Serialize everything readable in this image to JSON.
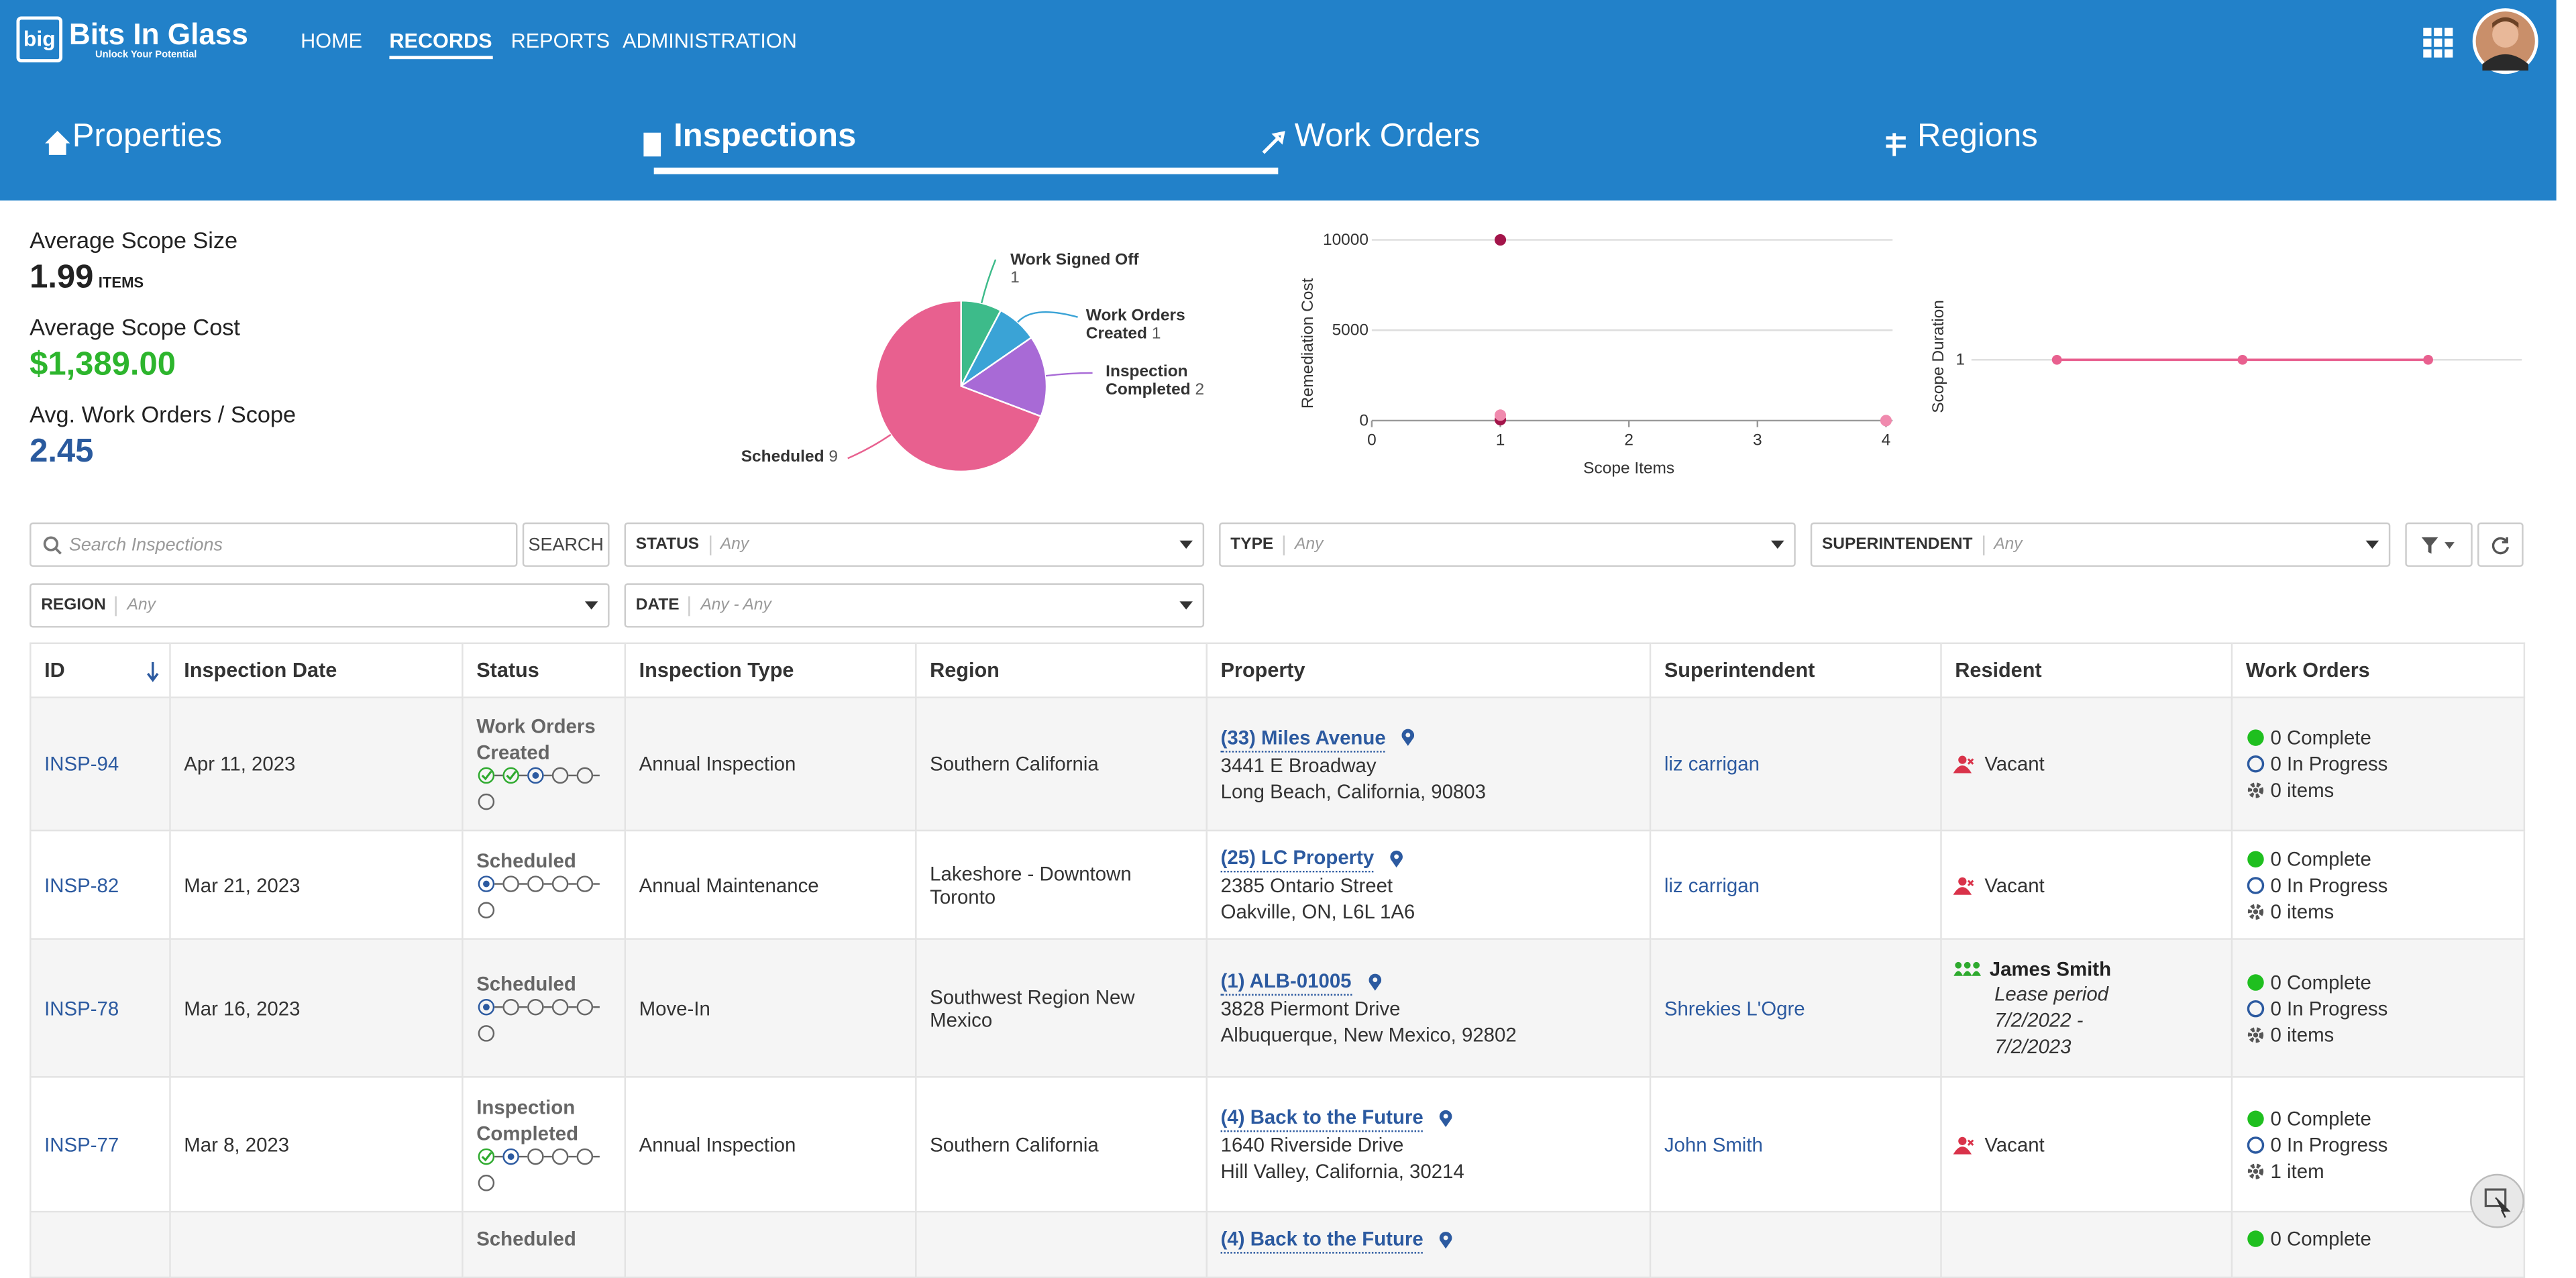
{
  "header": {
    "logo_mark": "big",
    "logo_title": "Bits In Glass",
    "logo_tagline": "Unlock Your Potential",
    "nav": [
      "HOME",
      "RECORDS",
      "REPORTS",
      "ADMINISTRATION"
    ],
    "active_nav": 1
  },
  "tabs": {
    "items": [
      "Properties",
      "Inspections",
      "Work Orders",
      "Regions"
    ],
    "active": 1
  },
  "stats": [
    {
      "label": "Average Scope Size",
      "value": "1.99",
      "unit": "ITEMS",
      "color": "#222222"
    },
    {
      "label": "Average Scope Cost",
      "value": "$1,389.00",
      "color": "#2db52d"
    },
    {
      "label": "Avg. Work Orders / Scope",
      "value": "2.45",
      "color": "#2a5a9e"
    }
  ],
  "chart_data": [
    {
      "type": "pie",
      "categories": [
        "Work Signed Off",
        "Work Orders Created",
        "Inspection Completed",
        "Scheduled"
      ],
      "values": [
        1,
        1,
        2,
        9
      ],
      "colors": [
        "#3dbb8a",
        "#3aa3d6",
        "#a86ad6",
        "#e8608f"
      ]
    },
    {
      "type": "scatter",
      "x_label": "Scope Items",
      "y_label": "Remediation Cost",
      "xlim": [
        0,
        4
      ],
      "ylim": [
        0,
        10000
      ],
      "xticks": [
        0,
        1,
        2,
        3,
        4
      ],
      "yticks": [
        0,
        5000,
        10000
      ],
      "grid": true,
      "series": [
        {
          "color": "#a3154a",
          "x": [
            1,
            1
          ],
          "values": [
            10000,
            50
          ]
        },
        {
          "color": "#f08aae",
          "x": [
            1,
            4
          ],
          "values": [
            300,
            0
          ]
        }
      ]
    },
    {
      "type": "line",
      "y_label": "Scope Duration",
      "categories": [
        null,
        null,
        null
      ],
      "values": [
        1,
        1,
        1
      ],
      "ylim": [
        0,
        2
      ],
      "yticks": [
        1
      ],
      "grid": true,
      "color": "#e8608f"
    }
  ],
  "filters": {
    "search_placeholder": "Search Inspections",
    "search_button": "SEARCH",
    "dropdowns": [
      {
        "label": "STATUS",
        "value": "Any"
      },
      {
        "label": "TYPE",
        "value": "Any"
      },
      {
        "label": "SUPERINTENDENT",
        "value": "Any"
      },
      {
        "label": "REGION",
        "value": "Any"
      },
      {
        "label": "DATE",
        "value": "Any - Any"
      }
    ]
  },
  "table": {
    "columns": [
      "ID",
      "Inspection Date",
      "Status",
      "Inspection Type",
      "Region",
      "Property",
      "Superintendent",
      "Resident",
      "Work Orders"
    ],
    "rows": [
      {
        "id": "INSP-94",
        "date": "Apr 11, 2023",
        "status": "Work Orders Created",
        "progress": [
          "done",
          "done",
          "current",
          "todo",
          "todo",
          "todo"
        ],
        "type": "Annual Inspection",
        "region": "Southern California",
        "property": {
          "name": "(33) Miles Avenue",
          "street": "3441 E Broadway",
          "city": "Long Beach, California, 90803"
        },
        "superintendent": "liz carrigan",
        "resident": {
          "name": "Vacant"
        },
        "work_orders": [
          "0 Complete",
          "0 In Progress",
          "0 items"
        ]
      },
      {
        "id": "INSP-82",
        "date": "Mar 21, 2023",
        "status": "Scheduled",
        "progress": [
          "current",
          "todo",
          "todo",
          "todo",
          "todo",
          "todo"
        ],
        "type": "Annual Maintenance",
        "region": "Lakeshore - Downtown Toronto",
        "property": {
          "name": "(25) LC Property",
          "street": "2385 Ontario Street",
          "city": "Oakville, ON, L6L 1A6"
        },
        "superintendent": "liz carrigan",
        "resident": {
          "name": "Vacant"
        },
        "work_orders": [
          "0 Complete",
          "0 In Progress",
          "0 items"
        ]
      },
      {
        "id": "INSP-78",
        "date": "Mar 16, 2023",
        "status": "Scheduled",
        "progress": [
          "current",
          "todo",
          "todo",
          "todo",
          "todo",
          "todo"
        ],
        "type": "Move-In",
        "region": "Southwest Region New Mexico",
        "property": {
          "name": "(1) ALB-01005",
          "street": "3828 Piermont Drive",
          "city": "Albuquerque, New Mexico, 92802"
        },
        "superintendent": "Shrekies L'Ogre",
        "resident": {
          "name": "James Smith",
          "lease": "Lease period 7/2/2022 - 7/2/2023"
        },
        "work_orders": [
          "0 Complete",
          "0 In Progress",
          "0 items"
        ]
      },
      {
        "id": "INSP-77",
        "date": "Mar 8, 2023",
        "status": "Inspection Completed",
        "progress": [
          "done",
          "current",
          "todo",
          "todo",
          "todo",
          "todo"
        ],
        "type": "Annual Inspection",
        "region": "Southern California",
        "property": {
          "name": "(4) Back to the Future",
          "street": "1640 Riverside Drive",
          "city": "Hill Valley, California, 30214"
        },
        "superintendent": "John Smith",
        "resident": {
          "name": "Vacant"
        },
        "work_orders": [
          "0 Complete",
          "0 In Progress",
          "1 item"
        ]
      },
      {
        "status": "Scheduled",
        "property": {
          "name": "(4) Back to the Future"
        },
        "work_orders": [
          "0 Complete"
        ]
      }
    ]
  }
}
